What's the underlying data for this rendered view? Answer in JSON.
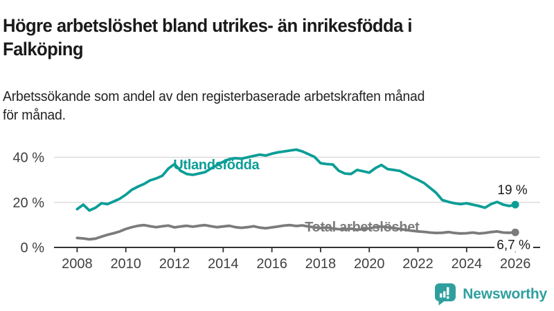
{
  "title_lines": [
    "Högre arbetslöshet bland utrikes- än inrikesfödda i",
    "Falköping"
  ],
  "subtitle_lines": [
    "Arbetssökande som andel av den registerbaserade arbetskraften månad",
    "för månad."
  ],
  "footer": {
    "brand": "Newsworthy",
    "icon": "newsworthy-bar-chart-bubble-icon"
  },
  "colors": {
    "accent_teal": "#0b9e96",
    "line_gray": "#7b7b7b",
    "grid": "#d9d9d9",
    "axis": "#333333",
    "axis_text": "#404040",
    "annotation_text": "#1a1a1a",
    "brand_teal": "#2f9f9e"
  },
  "chart_data": {
    "type": "line",
    "title": "Högre arbetslöshet bland utrikes- än inrikesfödda i Falköping",
    "subtitle": "Arbetssökande som andel av den registerbaserade arbetskraften månad för månad.",
    "xlabel": "",
    "ylabel": "",
    "grid": "horizontal",
    "legend_position": "inline-labels",
    "xlim": [
      2007.05,
      2027.02
    ],
    "ylim": [
      0,
      45.4
    ],
    "x_ticks": [
      {
        "value": 2008,
        "label": "2008"
      },
      {
        "value": 2010,
        "label": "2010"
      },
      {
        "value": 2012,
        "label": "2012"
      },
      {
        "value": 2014,
        "label": "2014"
      },
      {
        "value": 2016,
        "label": "2016"
      },
      {
        "value": 2018,
        "label": "2018"
      },
      {
        "value": 2020,
        "label": "2020"
      },
      {
        "value": 2022,
        "label": "2022"
      },
      {
        "value": 2024,
        "label": "2024"
      },
      {
        "value": 2026,
        "label": "2026"
      }
    ],
    "y_ticks": [
      {
        "value": 0,
        "label": "0 %"
      },
      {
        "value": 20,
        "label": "20 %"
      },
      {
        "value": 40,
        "label": "40 %"
      }
    ],
    "series": [
      {
        "id": "utlandsfodda",
        "name": "Utlandsfödda",
        "color": "#0b9e96",
        "end_dot": true,
        "label": {
          "x": 2011.95,
          "y": 34.7
        },
        "points": [
          [
            2008.0,
            17.0
          ],
          [
            2008.25,
            19.0
          ],
          [
            2008.5,
            16.4
          ],
          [
            2008.75,
            17.6
          ],
          [
            2009.0,
            19.6
          ],
          [
            2009.25,
            19.2
          ],
          [
            2009.5,
            20.4
          ],
          [
            2009.75,
            21.6
          ],
          [
            2010.0,
            23.4
          ],
          [
            2010.25,
            25.6
          ],
          [
            2010.5,
            27.0
          ],
          [
            2010.75,
            28.2
          ],
          [
            2011.0,
            29.8
          ],
          [
            2011.25,
            30.6
          ],
          [
            2011.5,
            31.8
          ],
          [
            2011.75,
            35.0
          ],
          [
            2012.0,
            37.0
          ],
          [
            2012.25,
            34.0
          ],
          [
            2012.5,
            32.6
          ],
          [
            2012.75,
            32.2
          ],
          [
            2013.0,
            32.8
          ],
          [
            2013.25,
            33.4
          ],
          [
            2013.5,
            35.0
          ],
          [
            2013.75,
            36.6
          ],
          [
            2014.0,
            38.0
          ],
          [
            2014.25,
            39.2
          ],
          [
            2014.5,
            39.6
          ],
          [
            2014.75,
            39.4
          ],
          [
            2015.0,
            40.0
          ],
          [
            2015.25,
            40.6
          ],
          [
            2015.5,
            41.2
          ],
          [
            2015.75,
            40.8
          ],
          [
            2016.0,
            41.6
          ],
          [
            2016.25,
            42.2
          ],
          [
            2016.5,
            42.6
          ],
          [
            2016.75,
            43.0
          ],
          [
            2017.0,
            43.4
          ],
          [
            2017.25,
            42.6
          ],
          [
            2017.5,
            41.4
          ],
          [
            2017.75,
            40.2
          ],
          [
            2018.0,
            37.4
          ],
          [
            2018.25,
            37.0
          ],
          [
            2018.5,
            36.8
          ],
          [
            2018.75,
            34.0
          ],
          [
            2019.0,
            32.8
          ],
          [
            2019.25,
            32.6
          ],
          [
            2019.5,
            34.4
          ],
          [
            2019.75,
            33.8
          ],
          [
            2020.0,
            33.2
          ],
          [
            2020.25,
            35.2
          ],
          [
            2020.5,
            36.6
          ],
          [
            2020.75,
            34.8
          ],
          [
            2021.0,
            34.4
          ],
          [
            2021.25,
            34.0
          ],
          [
            2021.5,
            32.6
          ],
          [
            2021.75,
            31.2
          ],
          [
            2022.0,
            30.0
          ],
          [
            2022.25,
            28.6
          ],
          [
            2022.5,
            26.4
          ],
          [
            2022.75,
            24.2
          ],
          [
            2023.0,
            21.0
          ],
          [
            2023.25,
            20.2
          ],
          [
            2023.5,
            19.6
          ],
          [
            2023.75,
            19.2
          ],
          [
            2024.0,
            19.6
          ],
          [
            2024.25,
            19.0
          ],
          [
            2024.5,
            18.4
          ],
          [
            2024.75,
            17.6
          ],
          [
            2025.0,
            19.2
          ],
          [
            2025.25,
            20.2
          ],
          [
            2025.5,
            19.0
          ],
          [
            2025.75,
            18.4
          ],
          [
            2026.0,
            19.0
          ]
        ]
      },
      {
        "id": "total-arbetsloshet",
        "name": "Total arbetslöshet",
        "color": "#7b7b7b",
        "end_dot": true,
        "label": {
          "x": 2017.35,
          "y": 7.0
        },
        "points": [
          [
            2008.0,
            4.2
          ],
          [
            2008.25,
            4.0
          ],
          [
            2008.5,
            3.6
          ],
          [
            2008.75,
            3.9
          ],
          [
            2009.0,
            4.8
          ],
          [
            2009.25,
            5.6
          ],
          [
            2009.5,
            6.3
          ],
          [
            2009.75,
            7.1
          ],
          [
            2010.0,
            8.2
          ],
          [
            2010.25,
            9.0
          ],
          [
            2010.5,
            9.6
          ],
          [
            2010.75,
            9.9
          ],
          [
            2011.0,
            9.4
          ],
          [
            2011.25,
            9.0
          ],
          [
            2011.5,
            9.4
          ],
          [
            2011.75,
            9.7
          ],
          [
            2012.0,
            8.9
          ],
          [
            2012.25,
            9.3
          ],
          [
            2012.5,
            9.6
          ],
          [
            2012.75,
            9.2
          ],
          [
            2013.0,
            9.6
          ],
          [
            2013.25,
            9.9
          ],
          [
            2013.5,
            9.4
          ],
          [
            2013.75,
            9.0
          ],
          [
            2014.0,
            9.3
          ],
          [
            2014.25,
            9.6
          ],
          [
            2014.5,
            9.0
          ],
          [
            2014.75,
            8.7
          ],
          [
            2015.0,
            9.0
          ],
          [
            2015.25,
            9.4
          ],
          [
            2015.5,
            8.8
          ],
          [
            2015.75,
            8.5
          ],
          [
            2016.0,
            8.9
          ],
          [
            2016.25,
            9.3
          ],
          [
            2016.5,
            9.7
          ],
          [
            2016.75,
            9.9
          ],
          [
            2017.0,
            9.5
          ],
          [
            2017.25,
            9.8
          ],
          [
            2017.5,
            9.3
          ],
          [
            2017.75,
            8.9
          ],
          [
            2018.0,
            8.6
          ],
          [
            2018.25,
            8.9
          ],
          [
            2018.5,
            8.4
          ],
          [
            2018.75,
            8.1
          ],
          [
            2019.0,
            8.0
          ],
          [
            2019.25,
            8.3
          ],
          [
            2019.5,
            7.9
          ],
          [
            2019.75,
            8.1
          ],
          [
            2020.0,
            8.4
          ],
          [
            2020.25,
            9.0
          ],
          [
            2020.5,
            9.3
          ],
          [
            2020.75,
            8.9
          ],
          [
            2021.0,
            8.6
          ],
          [
            2021.25,
            8.2
          ],
          [
            2021.5,
            7.8
          ],
          [
            2021.75,
            7.4
          ],
          [
            2022.0,
            7.1
          ],
          [
            2022.25,
            6.9
          ],
          [
            2022.5,
            6.6
          ],
          [
            2022.75,
            6.4
          ],
          [
            2023.0,
            6.5
          ],
          [
            2023.25,
            6.8
          ],
          [
            2023.5,
            6.4
          ],
          [
            2023.75,
            6.2
          ],
          [
            2024.0,
            6.3
          ],
          [
            2024.25,
            6.6
          ],
          [
            2024.5,
            6.2
          ],
          [
            2024.75,
            6.4
          ],
          [
            2025.0,
            6.8
          ],
          [
            2025.25,
            7.1
          ],
          [
            2025.5,
            6.6
          ],
          [
            2025.75,
            6.5
          ],
          [
            2026.0,
            6.7
          ]
        ]
      }
    ],
    "annotations": [
      {
        "id": "end-value-utlandsfodda",
        "text": "19 %",
        "x": 2026.5,
        "y": 23.6,
        "anchor": "end",
        "bg": false
      },
      {
        "id": "end-value-total",
        "text": "6,7 %",
        "x": 2026.62,
        "y": -0.7,
        "anchor": "end",
        "bg": true
      }
    ]
  }
}
